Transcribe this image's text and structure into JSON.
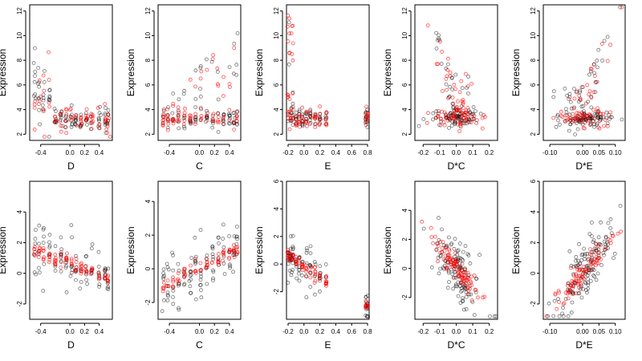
{
  "colors": {
    "background": "#ffffff",
    "series_black": "#000000",
    "series_red": "#ff0000"
  },
  "chart_data": [
    {
      "type": "scatter",
      "xlabel": "D",
      "ylabel": "Expression",
      "xlim": [
        -0.55,
        0.58
      ],
      "ylim": [
        1.5,
        12.5
      ],
      "xticks": [
        -0.4,
        0.0,
        0.2,
        0.4
      ],
      "xtick_labels": [
        "-0.4",
        "0.0",
        "0.2",
        "0.4"
      ],
      "yticks": [
        2,
        4,
        6,
        8,
        10,
        12
      ],
      "ytick_labels": [
        "2",
        "4",
        "6",
        "8",
        "10",
        "12"
      ],
      "pattern": "top_d"
    },
    {
      "type": "scatter",
      "xlabel": "C",
      "ylabel": "Expression",
      "xlim": [
        -0.55,
        0.55
      ],
      "ylim": [
        1.5,
        12.5
      ],
      "xticks": [
        -0.4,
        0.0,
        0.2,
        0.4
      ],
      "xtick_labels": [
        "-0.4",
        "0.0",
        "0.2",
        "0.4"
      ],
      "yticks": [
        2,
        4,
        6,
        8,
        10,
        12
      ],
      "ytick_labels": [
        "2",
        "4",
        "6",
        "8",
        "10",
        "12"
      ],
      "pattern": "top_c"
    },
    {
      "type": "scatter",
      "xlabel": "E",
      "ylabel": "Expression",
      "xlim": [
        -0.22,
        0.82
      ],
      "ylim": [
        1.5,
        12.5
      ],
      "xticks": [
        -0.2,
        0.0,
        0.2,
        0.4,
        0.6,
        0.8
      ],
      "xtick_labels": [
        "-0.2",
        "0.0",
        "0.2",
        "0.4",
        "0.6",
        "0.8"
      ],
      "yticks": [
        2,
        4,
        6,
        8,
        10,
        12
      ],
      "ytick_labels": [
        "2",
        "4",
        "6",
        "8",
        "10",
        "12"
      ],
      "pattern": "top_e"
    },
    {
      "type": "scatter",
      "xlabel": "D*C",
      "ylabel": "Expression",
      "xlim": [
        -0.25,
        0.25
      ],
      "ylim": [
        1.5,
        12.5
      ],
      "xticks": [
        -0.2,
        -0.1,
        0.0,
        0.1,
        0.2
      ],
      "xtick_labels": [
        "-0.2",
        "-0.1",
        "0.0",
        "0.1",
        "0.2"
      ],
      "yticks": [
        2,
        4,
        6,
        8,
        10,
        12
      ],
      "ytick_labels": [
        "2",
        "4",
        "6",
        "8",
        "10",
        "12"
      ],
      "pattern": "top_dc"
    },
    {
      "type": "scatter",
      "xlabel": "D*E",
      "ylabel": "Expression",
      "xlim": [
        -0.12,
        0.13
      ],
      "ylim": [
        1.5,
        12.5
      ],
      "xticks": [
        -0.1,
        0.0,
        0.05,
        0.1
      ],
      "xtick_labels": [
        "-0.10",
        "0.00",
        "0.05",
        "0.10"
      ],
      "yticks": [
        2,
        4,
        6,
        8,
        10,
        12
      ],
      "ytick_labels": [
        "2",
        "4",
        "6",
        "8",
        "10",
        "12"
      ],
      "pattern": "top_de"
    },
    {
      "type": "scatter",
      "xlabel": "D",
      "ylabel": "Expression",
      "xlim": [
        -0.55,
        0.58
      ],
      "ylim": [
        -3.0,
        6.0
      ],
      "xticks": [
        -0.4,
        0.0,
        0.2,
        0.4
      ],
      "xtick_labels": [
        "-0.4",
        "0.0",
        "0.2",
        "0.4"
      ],
      "yticks": [
        -2,
        0,
        2,
        4
      ],
      "ytick_labels": [
        "-2",
        "0",
        "2",
        "4"
      ],
      "pattern": "bot_d"
    },
    {
      "type": "scatter",
      "xlabel": "C",
      "ylabel": "Expression",
      "xlim": [
        -0.55,
        0.55
      ],
      "ylim": [
        -3.0,
        5.2
      ],
      "xticks": [
        -0.4,
        0.0,
        0.2,
        0.4
      ],
      "xtick_labels": [
        "-0.4",
        "0.0",
        "0.2",
        "0.4"
      ],
      "yticks": [
        -2,
        0,
        2,
        4
      ],
      "ytick_labels": [
        "-2",
        "0",
        "2",
        "4"
      ],
      "pattern": "bot_c"
    },
    {
      "type": "scatter",
      "xlabel": "E",
      "ylabel": "Expression",
      "xlim": [
        -0.22,
        0.82
      ],
      "ylim": [
        -4.0,
        6.0
      ],
      "xticks": [
        -0.2,
        0.0,
        0.2,
        0.4,
        0.6,
        0.8
      ],
      "xtick_labels": [
        "-0.2",
        "0.0",
        "0.2",
        "0.4",
        "0.6",
        "0.8"
      ],
      "yticks": [
        -2,
        0,
        2,
        4,
        6
      ],
      "ytick_labels": [
        "-2",
        "0",
        "2",
        "4",
        "6"
      ],
      "pattern": "bot_e"
    },
    {
      "type": "scatter",
      "xlabel": "D*C",
      "ylabel": "Expression",
      "xlim": [
        -0.25,
        0.25
      ],
      "ylim": [
        -3.5,
        6.0
      ],
      "xticks": [
        -0.2,
        -0.1,
        0.0,
        0.1,
        0.2
      ],
      "xtick_labels": [
        "-0.2",
        "-0.1",
        "0.0",
        "0.1",
        "0.2"
      ],
      "yticks": [
        -2,
        0,
        2,
        4
      ],
      "ytick_labels": [
        "-2",
        "0",
        "2",
        "4"
      ],
      "pattern": "bot_dc"
    },
    {
      "type": "scatter",
      "xlabel": "D*E",
      "ylabel": "Expression",
      "xlim": [
        -0.12,
        0.13
      ],
      "ylim": [
        -3.0,
        6.0
      ],
      "xticks": [
        -0.1,
        0.0,
        0.05,
        0.1
      ],
      "xtick_labels": [
        "-0.10",
        "0.00",
        "0.05",
        "0.10"
      ],
      "yticks": [
        -2,
        0,
        2,
        4,
        6
      ],
      "ytick_labels": [
        "-2",
        "0",
        "2",
        "4",
        "6"
      ],
      "pattern": "bot_de"
    }
  ]
}
